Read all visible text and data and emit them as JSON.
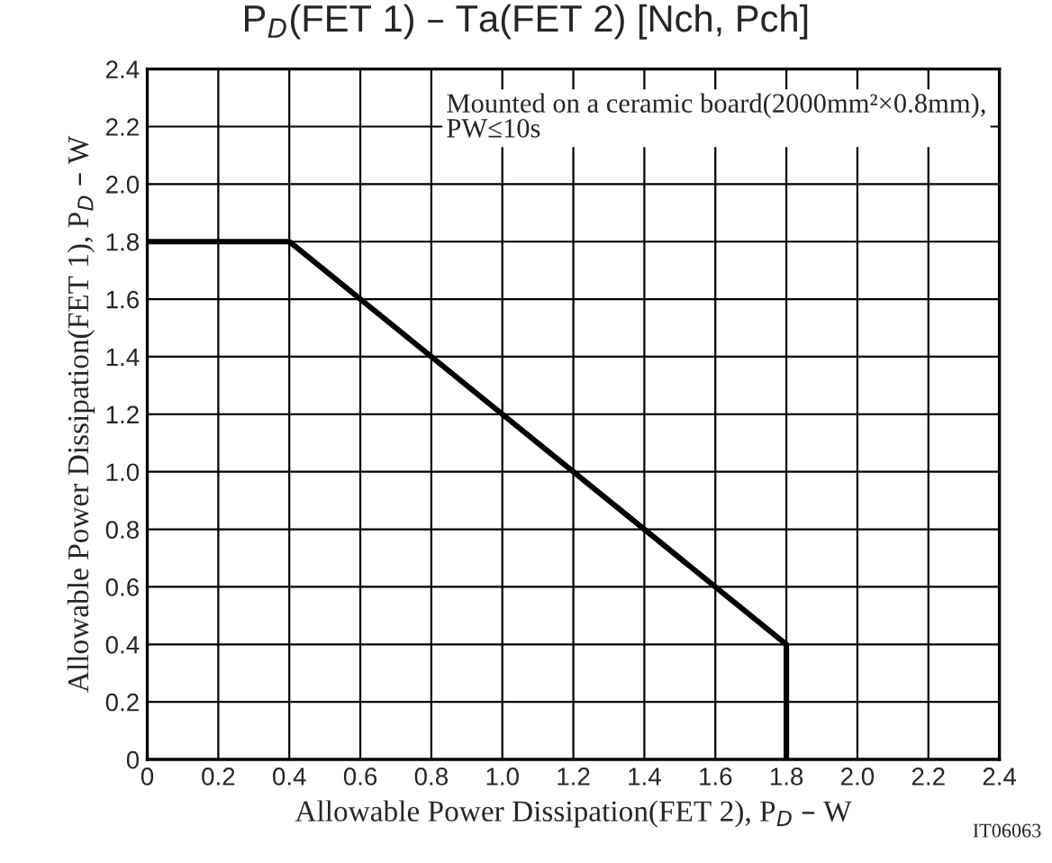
{
  "chart_data": {
    "type": "line",
    "title": "P$_{D}$(FET 1) – Ta(FET 2) [Nch, Pch]",
    "xlabel": "Allowable Power Dissipation(FET 2), P$_{D}$ – W",
    "ylabel": "Allowable Power Dissipation(FET 1), P$_{D}$ – W",
    "series": [
      {
        "color": "#000000",
        "x": [
          0,
          0.4,
          1.8,
          1.8
        ],
        "values": [
          1.8,
          1.8,
          0.4,
          0
        ]
      }
    ],
    "xlim": [
      0,
      2.4
    ],
    "ylim": [
      0,
      2.4
    ],
    "xticks": [
      {
        "value": 0,
        "label": "0"
      },
      0.2,
      0.4,
      0.6,
      0.8,
      {
        "value": 1,
        "label": "1.0"
      },
      1.2,
      1.4,
      1.6,
      1.8,
      {
        "value": 2,
        "label": "2.0"
      },
      2.2,
      2.4
    ],
    "yticks": [
      {
        "value": 0,
        "label": "0"
      },
      0.2,
      0.4,
      0.6,
      0.8,
      {
        "value": 1,
        "label": "1.0"
      },
      1.2,
      1.4,
      1.6,
      1.8,
      {
        "value": 2,
        "label": "2.0"
      },
      2.2,
      2.4
    ],
    "grid": true,
    "marker": "none",
    "line_style": "solid",
    "annotations": [
      "Mounted on a ceramic board(2000mm²×0.8mm),\nPW≤10s",
      "IT06063"
    ]
  }
}
